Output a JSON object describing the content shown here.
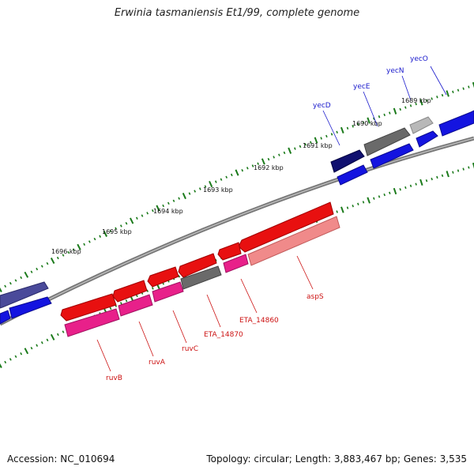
{
  "title": "Erwinia tasmaniensis Et1/99, complete genome",
  "footer": {
    "accession": "Accession: NC_010694",
    "summary": "Topology: circular; Length: 3,883,467 bp; Genes: 3,535"
  },
  "ruler": [
    "1689 kbp",
    "1690 kbp",
    "1691 kbp",
    "1692 kbp",
    "1693 kbp",
    "1694 kbp",
    "1695 kbp",
    "1696 kbp"
  ],
  "gene_labels": {
    "forward": [
      "yecO",
      "yecN",
      "yecE",
      "yecD"
    ],
    "reverse": [
      "aspS",
      "ETA_14860",
      "ETA_14870",
      "ruvC",
      "ruvA",
      "ruvB"
    ]
  },
  "colors": {
    "forward_label": "#1a1acc",
    "reverse_label": "#cc1111",
    "backbone": "#888888",
    "ticks": "#1a7a1a",
    "red": "#e81010",
    "pink": "#e8208a",
    "blue": "#1414e0",
    "navy": "#101070",
    "slate": "#4a4a9a",
    "gray": "#6a6a6a",
    "lightgray": "#b8b8b8",
    "salmon": "#f08a8a"
  }
}
